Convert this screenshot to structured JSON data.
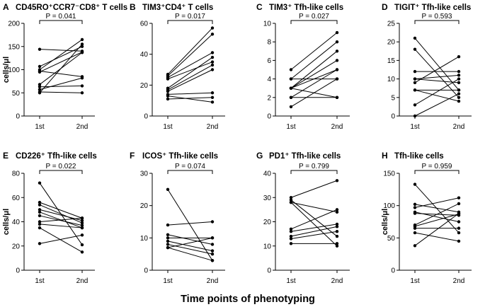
{
  "figure": {
    "x_axis_title": "Time points of phenotyping",
    "x_categories": [
      "1st",
      "2nd"
    ],
    "y_label": "cells/μl"
  },
  "chart_data": [
    {
      "type": "line",
      "letter": "A",
      "title": "CD45RO⁺CCR7⁻CD8⁺ T cells",
      "xlabel": "",
      "ylabel": "cells/μl",
      "categories": [
        "1st",
        "2nd"
      ],
      "ylim": [
        0,
        200
      ],
      "yticks": [
        0,
        50,
        100,
        150,
        200
      ],
      "p_value": "P = 0.041",
      "series": [
        {
          "values": [
            144,
            140
          ]
        },
        {
          "values": [
            107,
            150
          ]
        },
        {
          "values": [
            100,
            165
          ]
        },
        {
          "values": [
            95,
            138
          ]
        },
        {
          "values": [
            97,
            85
          ]
        },
        {
          "values": [
            68,
            137
          ]
        },
        {
          "values": [
            63,
            65
          ]
        },
        {
          "values": [
            57,
            82
          ]
        },
        {
          "values": [
            52,
            50
          ]
        },
        {
          "values": [
            50,
            155
          ]
        }
      ]
    },
    {
      "type": "line",
      "letter": "B",
      "title": "TIM3⁺CD4⁺ T cells",
      "xlabel": "",
      "ylabel": "",
      "categories": [
        "1st",
        "2nd"
      ],
      "ylim": [
        0,
        60
      ],
      "yticks": [
        0,
        20,
        40,
        60
      ],
      "p_value": "P = 0.017",
      "series": [
        {
          "values": [
            27,
            57
          ]
        },
        {
          "values": [
            26,
            53
          ]
        },
        {
          "values": [
            25,
            41
          ]
        },
        {
          "values": [
            24,
            35
          ]
        },
        {
          "values": [
            18,
            38
          ]
        },
        {
          "values": [
            17,
            33
          ]
        },
        {
          "values": [
            16,
            30
          ]
        },
        {
          "values": [
            14,
            15
          ]
        },
        {
          "values": [
            13,
            9
          ]
        },
        {
          "values": [
            11,
            12
          ]
        }
      ]
    },
    {
      "type": "line",
      "letter": "C",
      "title": "TIM3⁺ Tfh-like cells",
      "xlabel": "",
      "ylabel": "",
      "categories": [
        "1st",
        "2nd"
      ],
      "ylim": [
        0,
        10
      ],
      "yticks": [
        0,
        2,
        4,
        6,
        8,
        10
      ],
      "p_value": "P = 0.027",
      "series": [
        {
          "values": [
            5,
            9
          ]
        },
        {
          "values": [
            4,
            8
          ]
        },
        {
          "values": [
            4,
            4
          ]
        },
        {
          "values": [
            3,
            7
          ]
        },
        {
          "values": [
            3,
            6
          ]
        },
        {
          "values": [
            3,
            5
          ]
        },
        {
          "values": [
            3,
            2
          ]
        },
        {
          "values": [
            2,
            5
          ]
        },
        {
          "values": [
            2,
            2
          ]
        },
        {
          "values": [
            1,
            4
          ]
        }
      ]
    },
    {
      "type": "line",
      "letter": "D",
      "title": "TIGIT⁺ Tfh-like cells",
      "xlabel": "",
      "ylabel": "",
      "categories": [
        "1st",
        "2nd"
      ],
      "ylim": [
        0,
        25
      ],
      "yticks": [
        0,
        5,
        10,
        15,
        20,
        25
      ],
      "p_value": "P = 0.593",
      "series": [
        {
          "values": [
            21,
            7
          ]
        },
        {
          "values": [
            18,
            5
          ]
        },
        {
          "values": [
            12,
            12
          ]
        },
        {
          "values": [
            10,
            11
          ]
        },
        {
          "values": [
            10,
            9
          ]
        },
        {
          "values": [
            9,
            16
          ]
        },
        {
          "values": [
            7,
            7
          ]
        },
        {
          "values": [
            7,
            4
          ]
        },
        {
          "values": [
            3,
            10
          ]
        },
        {
          "values": [
            0,
            6
          ]
        }
      ]
    },
    {
      "type": "line",
      "letter": "E",
      "title": "CD226⁺ Tfh-like cells",
      "xlabel": "",
      "ylabel": "cells/μl",
      "categories": [
        "1st",
        "2nd"
      ],
      "ylim": [
        0,
        80
      ],
      "yticks": [
        0,
        20,
        40,
        60,
        80
      ],
      "p_value": "P = 0.022",
      "series": [
        {
          "values": [
            72,
            21
          ]
        },
        {
          "values": [
            56,
            43
          ]
        },
        {
          "values": [
            54,
            39
          ]
        },
        {
          "values": [
            50,
            41
          ]
        },
        {
          "values": [
            48,
            35
          ]
        },
        {
          "values": [
            45,
            37
          ]
        },
        {
          "values": [
            40,
            43
          ]
        },
        {
          "values": [
            38,
            35
          ]
        },
        {
          "values": [
            35,
            15
          ]
        },
        {
          "values": [
            22,
            29
          ]
        }
      ]
    },
    {
      "type": "line",
      "letter": "F",
      "title": "ICOS⁺ Tfh-like cells",
      "xlabel": "",
      "ylabel": "",
      "categories": [
        "1st",
        "2nd"
      ],
      "ylim": [
        0,
        30
      ],
      "yticks": [
        0,
        10,
        20,
        30
      ],
      "p_value": "P = 0.074",
      "series": [
        {
          "values": [
            25,
            3
          ]
        },
        {
          "values": [
            14,
            15
          ]
        },
        {
          "values": [
            11,
            8
          ]
        },
        {
          "values": [
            10,
            10
          ]
        },
        {
          "values": [
            9,
            6
          ]
        },
        {
          "values": [
            8,
            5
          ]
        },
        {
          "values": [
            7,
            10
          ]
        },
        {
          "values": [
            7,
            3
          ]
        }
      ]
    },
    {
      "type": "line",
      "letter": "G",
      "title": "PD1⁺ Tfh-like cells",
      "xlabel": "",
      "ylabel": "",
      "categories": [
        "1st",
        "2nd"
      ],
      "ylim": [
        0,
        40
      ],
      "yticks": [
        0,
        10,
        20,
        30,
        40
      ],
      "p_value": "P = 0.799",
      "series": [
        {
          "values": [
            30,
            37
          ]
        },
        {
          "values": [
            29,
            14
          ]
        },
        {
          "values": [
            28,
            24
          ]
        },
        {
          "values": [
            17,
            25
          ]
        },
        {
          "values": [
            16,
            19
          ]
        },
        {
          "values": [
            14,
            18
          ]
        },
        {
          "values": [
            13,
            16
          ]
        },
        {
          "values": [
            11,
            11
          ]
        },
        {
          "values": [
            28,
            10
          ]
        }
      ]
    },
    {
      "type": "line",
      "letter": "H",
      "title": "Tfh-like cells",
      "xlabel": "",
      "ylabel": "cells/μl",
      "categories": [
        "1st",
        "2nd"
      ],
      "ylim": [
        0,
        150
      ],
      "yticks": [
        0,
        50,
        100,
        150
      ],
      "p_value": "P = 0.959",
      "series": [
        {
          "values": [
            133,
            58
          ]
        },
        {
          "values": [
            102,
            90
          ]
        },
        {
          "values": [
            97,
            112
          ]
        },
        {
          "values": [
            90,
            75
          ]
        },
        {
          "values": [
            88,
            85
          ]
        },
        {
          "values": [
            70,
            103
          ]
        },
        {
          "values": [
            68,
            87
          ]
        },
        {
          "values": [
            65,
            65
          ]
        },
        {
          "values": [
            58,
            45
          ]
        },
        {
          "values": [
            38,
            88
          ]
        }
      ]
    }
  ]
}
